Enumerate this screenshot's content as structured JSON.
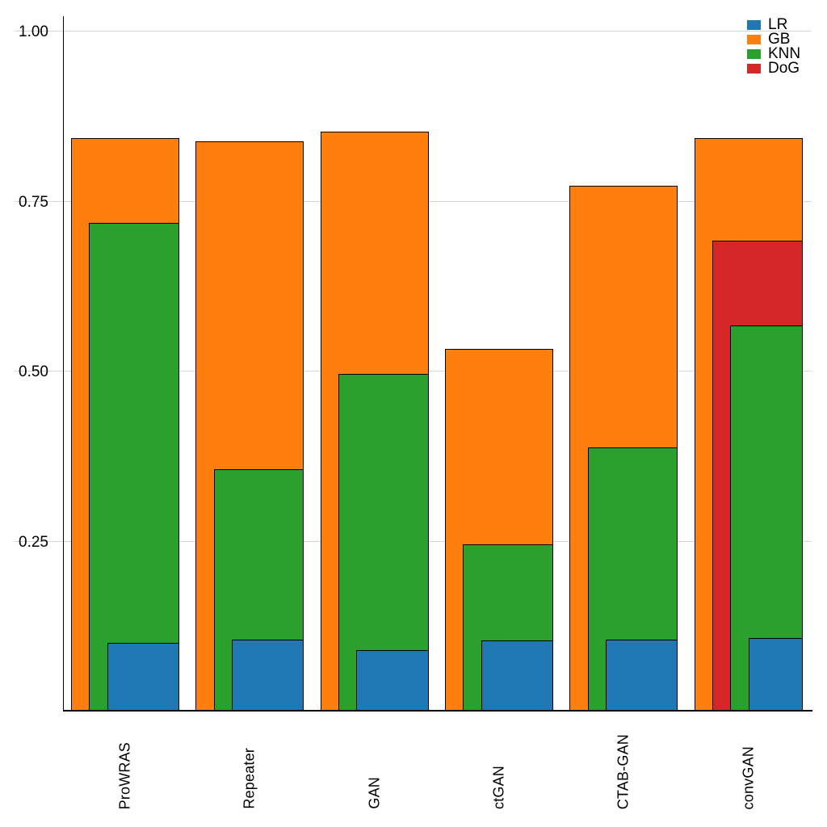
{
  "figure": {
    "background": "#ffffff",
    "title": ""
  },
  "chart_data": {
    "type": "bar",
    "variant": "layered-overlay-bars",
    "title": "",
    "xlabel": "",
    "ylabel": "",
    "categories": [
      "ProWRAS",
      "Repeater",
      "GAN",
      "ctGAN",
      "CTAB-GAN",
      "convGAN"
    ],
    "series": [
      {
        "name": "LR",
        "color": "#1f77b4",
        "values": [
          0.1,
          0.105,
          0.089,
          0.103,
          0.105,
          0.107
        ]
      },
      {
        "name": "GB",
        "color": "#ff7f0e",
        "values": [
          0.842,
          0.837,
          0.851,
          0.532,
          0.772,
          0.842
        ]
      },
      {
        "name": "KNN",
        "color": "#2ca02c",
        "values": [
          0.717,
          0.355,
          0.495,
          0.245,
          0.387,
          0.566
        ]
      },
      {
        "name": "DoG",
        "color": "#d62728",
        "values": [
          null,
          null,
          null,
          null,
          null,
          0.691
        ]
      }
    ],
    "draw_order": [
      "GB",
      "DoG",
      "KNN",
      "LR"
    ],
    "y_ticks": [
      "0.25",
      "0.50",
      "0.75",
      "1.00"
    ],
    "y_tick_values": [
      0.25,
      0.5,
      0.75,
      1.0
    ],
    "ylim": [
      0,
      1.021
    ],
    "grid": "horizontal",
    "legend": {
      "position": "top-right",
      "entries": [
        {
          "label": "LR",
          "color": "#1f77b4"
        },
        {
          "label": "GB",
          "color": "#ff7f0e"
        },
        {
          "label": "KNN",
          "color": "#2ca02c"
        },
        {
          "label": "DoG",
          "color": "#d62728"
        }
      ]
    },
    "colors": {
      "bar_edge": "#000000",
      "gridline": "#d6d6d6",
      "axis": "#000000",
      "text": "#000000"
    }
  }
}
